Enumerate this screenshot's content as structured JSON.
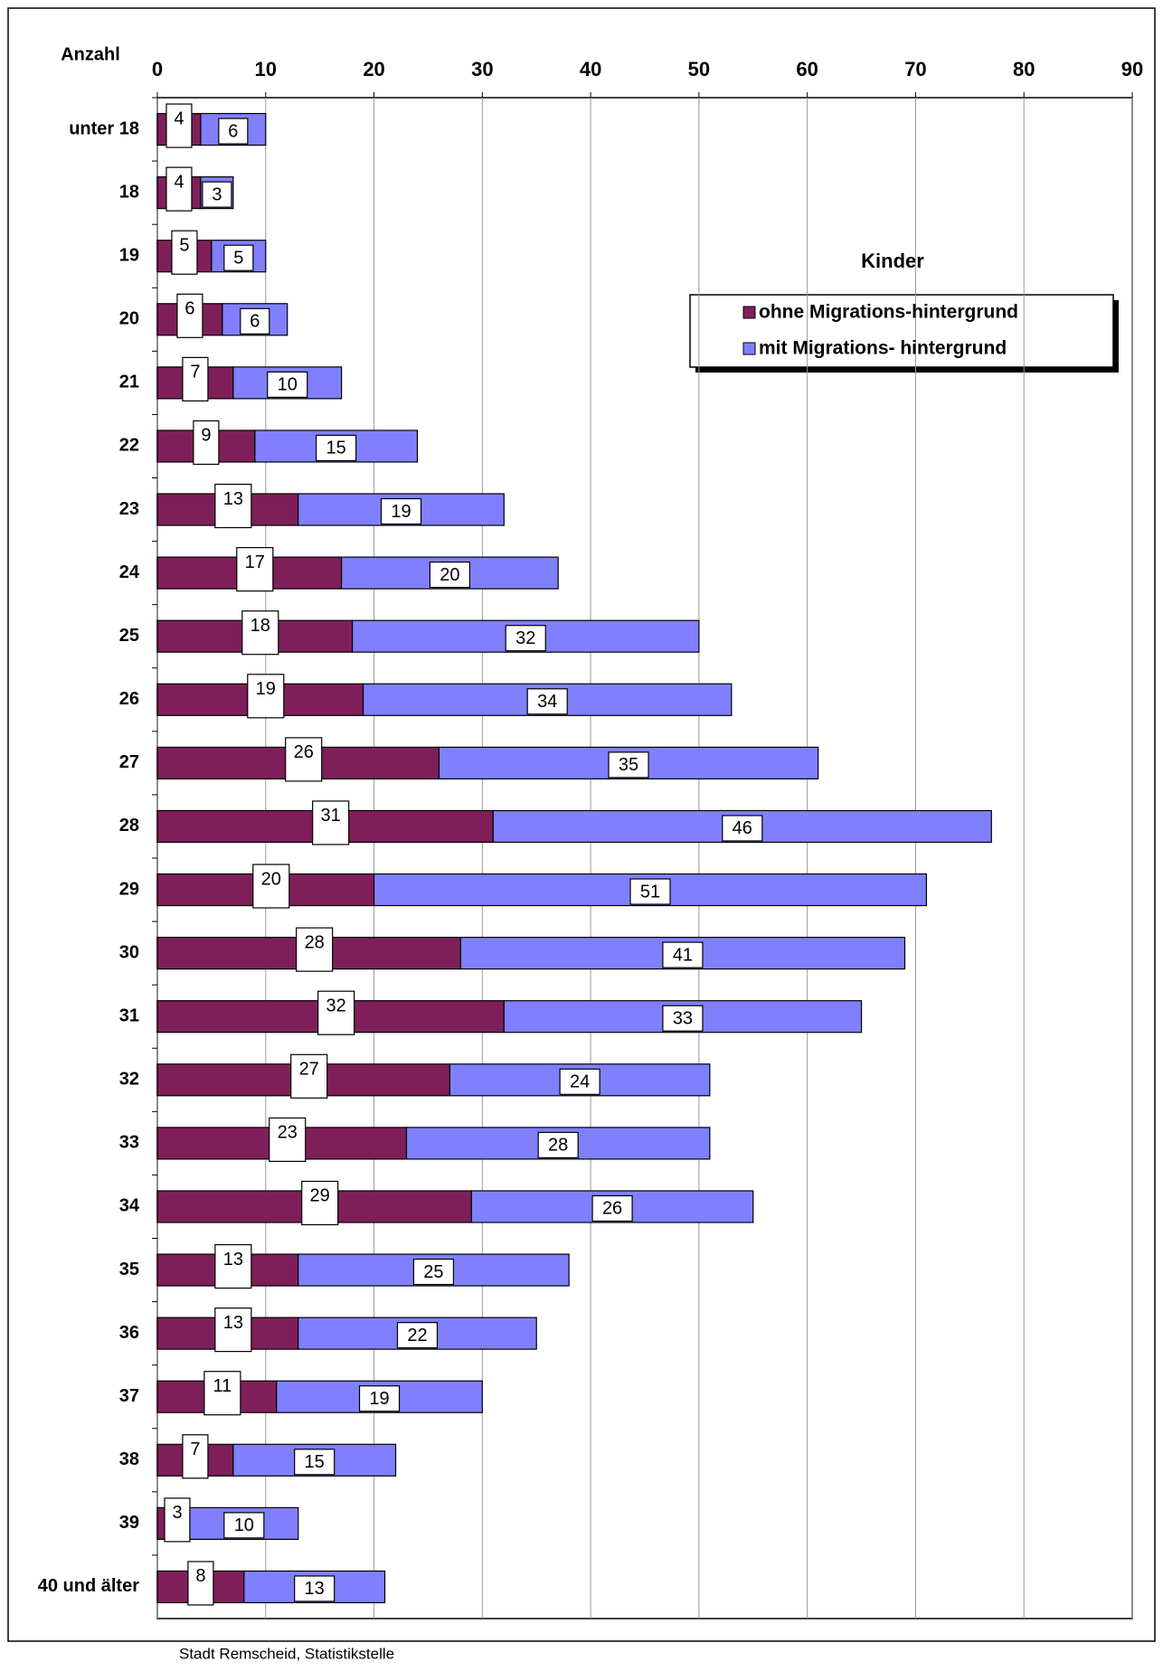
{
  "chart_data": {
    "type": "stacked-bar-horizontal",
    "y_axis_title": "Anzahl",
    "legend_title": "Kinder",
    "source": "Stadt Remscheid,  Statistikstelle",
    "categories": [
      "unter 18",
      "18",
      "19",
      "20",
      "21",
      "22",
      "23",
      "24",
      "25",
      "26",
      "27",
      "28",
      "29",
      "30",
      "31",
      "32",
      "33",
      "34",
      "35",
      "36",
      "37",
      "38",
      "39",
      "40 und älter"
    ],
    "series": [
      {
        "name": "ohne Migrations-hintergrund",
        "color": "#7f1f5a",
        "values": [
          4,
          4,
          5,
          6,
          7,
          9,
          13,
          17,
          18,
          19,
          26,
          31,
          20,
          28,
          32,
          27,
          23,
          29,
          13,
          13,
          11,
          7,
          3,
          8
        ]
      },
      {
        "name": "mit Migrations- hintergrund",
        "color": "#8080ff",
        "values": [
          6,
          3,
          5,
          6,
          10,
          15,
          19,
          20,
          32,
          34,
          35,
          46,
          51,
          41,
          33,
          24,
          28,
          26,
          25,
          22,
          19,
          15,
          10,
          13
        ]
      }
    ],
    "xlim": [
      0,
      90
    ],
    "xticks": [
      0,
      10,
      20,
      30,
      40,
      50,
      60,
      70,
      80,
      90
    ],
    "grid": true
  }
}
